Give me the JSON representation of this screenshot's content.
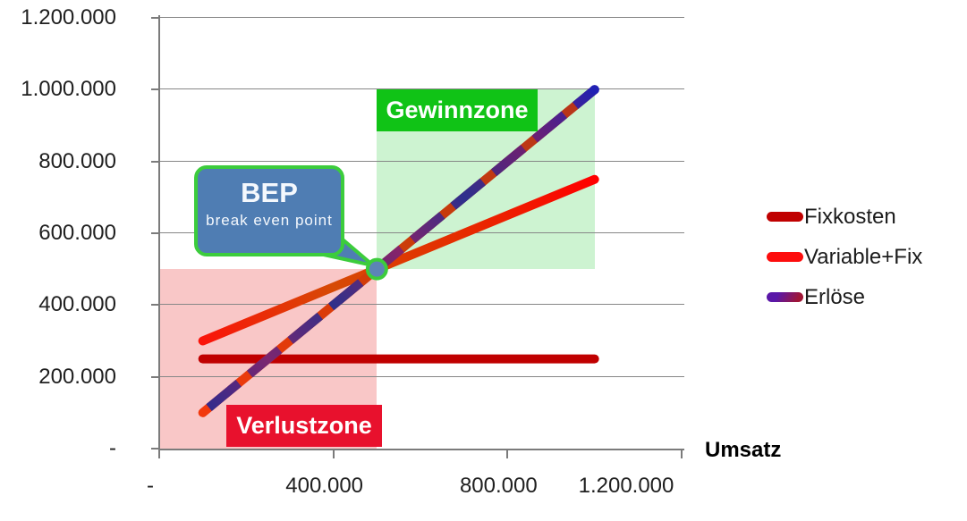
{
  "chart_data": {
    "type": "line",
    "title": "",
    "xlabel": "Umsatz",
    "ylabel": "",
    "xlim": [
      0,
      1200000
    ],
    "ylim": [
      0,
      1200000
    ],
    "grid": "horizontal-only",
    "legend_position": "right-middle",
    "x_ticks": [
      {
        "value": 0,
        "label": "-"
      },
      {
        "value": 400000,
        "label": "400.000"
      },
      {
        "value": 800000,
        "label": "800.000"
      },
      {
        "value": 1200000,
        "label": "1.200.000"
      }
    ],
    "y_ticks": [
      {
        "value": 0,
        "label": "-"
      },
      {
        "value": 200000,
        "label": "200.000"
      },
      {
        "value": 400000,
        "label": "400.000"
      },
      {
        "value": 600000,
        "label": "600.000"
      },
      {
        "value": 800000,
        "label": "800.000"
      },
      {
        "value": 1000000,
        "label": "1.000.000"
      },
      {
        "value": 1200000,
        "label": "1.200.000"
      }
    ],
    "series": [
      {
        "name": "Fixkosten",
        "points": [
          [
            100000,
            250000
          ],
          [
            1000000,
            250000
          ]
        ],
        "style": "solid",
        "color": "#c00000",
        "legend_color": "#c00000"
      },
      {
        "name": "Variable+Fix",
        "points": [
          [
            100000,
            300000
          ],
          [
            1000000,
            750000
          ]
        ],
        "style": "solid-gradient",
        "gradient": [
          "#fa140a",
          "#d64a05",
          "#e62b00",
          "#ff0000"
        ],
        "legend_color": "#fd0d0d"
      },
      {
        "name": "Erlöse",
        "points": [
          [
            100000,
            100000
          ],
          [
            1000000,
            1000000
          ]
        ],
        "style": "dashed-gradient",
        "gradient": [
          "#2b2b8f",
          "#7c2670",
          "#30308a",
          "#86246a",
          "#2e2e8d",
          "#731f6e",
          "#2222b0"
        ],
        "base_gradient": [
          "#f2390d",
          "#cc3d08",
          "#b5341c"
        ],
        "end_cap": "#2121b4",
        "legend_color": "#5a17a8",
        "legend_color2": "#a01535"
      }
    ],
    "annotations": {
      "break_even_point": {
        "x": 500000,
        "y": 500000,
        "title": "BEP",
        "subtitle": "break even point",
        "fill": "#4f7db3",
        "border": "#3ccc3c"
      },
      "zones": [
        {
          "label": "Verlustzone",
          "x0": 0,
          "y0": 0,
          "x1": 500000,
          "y1": 500000,
          "fill": "#f9c7c7",
          "label_bg": "#e8112d",
          "label_color": "#ffffff"
        },
        {
          "label": "Gewinnzone",
          "x0": 500000,
          "y0": 500000,
          "x1": 1000000,
          "y1": 1000000,
          "fill": "#cdf3d1",
          "label_bg": "#10c316",
          "label_color": "#ffffff"
        }
      ]
    }
  },
  "legend": {
    "items": [
      "Fixkosten",
      "Variable+Fix",
      "Erlöse"
    ]
  },
  "labels": {
    "x_axis_title": "Umsatz",
    "bep_title": "BEP",
    "bep_subtitle": "break even point",
    "gewinnzone": "Gewinnzone",
    "verlustzone": "Verlustzone"
  }
}
